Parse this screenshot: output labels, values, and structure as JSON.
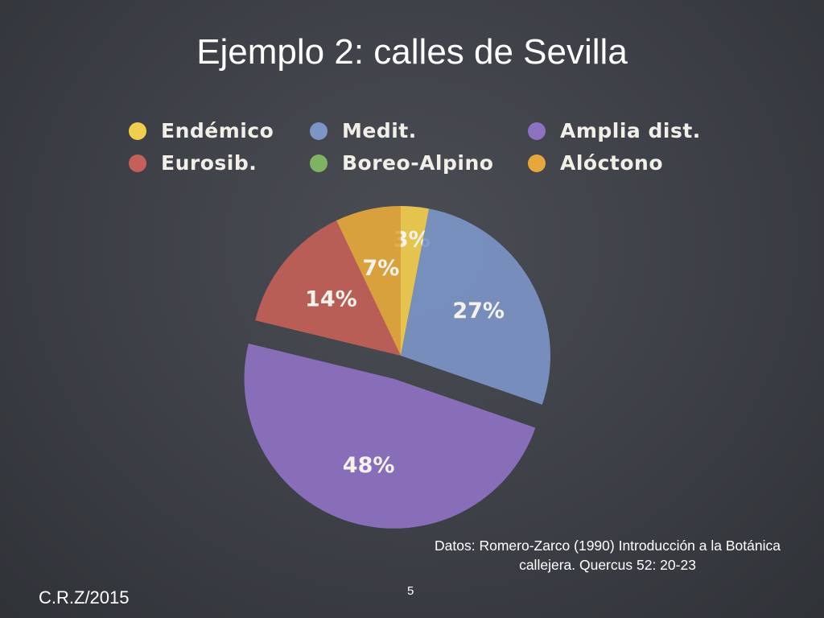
{
  "slide": {
    "title": "Ejemplo 2: calles de Sevilla",
    "source_line1": "Datos: Romero-Zarco (1990) Introducción a la Botánica",
    "source_line2": "callejera. Quercus 52: 20-23",
    "footer": "C.R.Z/2015",
    "page_number": "5"
  },
  "chart_data": {
    "type": "pie",
    "legend": [
      {
        "label": "Endémico",
        "color": "#f2ce4f"
      },
      {
        "label": "Medit.",
        "color": "#7c95c6"
      },
      {
        "label": "Amplia dist.",
        "color": "#8e72c2"
      },
      {
        "label": "Eurosib.",
        "color": "#c36058"
      },
      {
        "label": "Boreo-Alpino",
        "color": "#7fb261"
      },
      {
        "label": "Alóctono",
        "color": "#e6a83c"
      }
    ],
    "slices": [
      {
        "category": "Endémico",
        "value": 3,
        "label": "3%",
        "color": "#f2ce4f",
        "exploded": false
      },
      {
        "category": "Medit.",
        "value": 27,
        "label": "27%",
        "color": "#7c95c6",
        "exploded": false
      },
      {
        "category": "Amplia dist.",
        "value": 48,
        "label": "48%",
        "color": "#8e72c2",
        "exploded": true
      },
      {
        "category": "Eurosib.",
        "value": 14,
        "label": "14%",
        "color": "#c36058",
        "exploded": false
      },
      {
        "category": "Alóctono",
        "value": 7,
        "label": "7%",
        "color": "#e6a83c",
        "exploded": false
      }
    ],
    "legend_placement": "top"
  }
}
